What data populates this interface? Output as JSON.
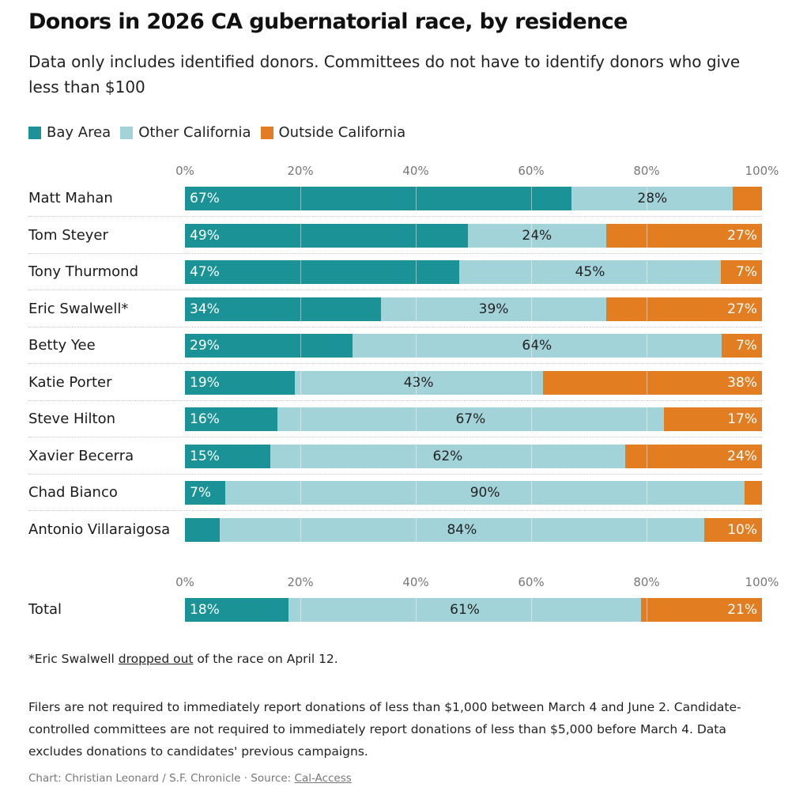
{
  "title": "Donors in 2026 CA gubernatorial race, by residence",
  "subtitle": "Data only includes identified donors. Committees do not have to identify donors who give less than $100",
  "footnote": {
    "prefix": "*Eric Swalwell ",
    "link": "dropped out",
    "suffix": " of the race on April 12."
  },
  "notes": "Filers are not required to immediately report donations of less than $1,000 between March 4 and June 2. Candidate-controlled committees are not required to immediately report donations of less than $5,000 before March 4. Data excludes donations to candidates' previous campaigns.",
  "credit": {
    "prefix": "Chart: Christian Leonard / S.F. Chronicle · Source: ",
    "link": "Cal-Access"
  },
  "colors": {
    "bay_area": "#1a9296",
    "other_california": "#a2d3d9",
    "outside_california": "#e27d22"
  },
  "chart_data": {
    "type": "bar",
    "orientation": "horizontal",
    "stacked": true,
    "xlim": [
      0,
      100
    ],
    "tick_labels": [
      "0%",
      "20%",
      "40%",
      "60%",
      "80%",
      "100%"
    ],
    "legend_position": "top-left",
    "series": [
      {
        "name": "Bay Area",
        "color": "#1a9296"
      },
      {
        "name": "Other California",
        "color": "#a2d3d9"
      },
      {
        "name": "Outside California",
        "color": "#e27d22"
      }
    ],
    "rows": [
      {
        "name": "Matt Mahan",
        "values": [
          67,
          28,
          5
        ],
        "labels": [
          "67%",
          "28%",
          ""
        ]
      },
      {
        "name": "Tom Steyer",
        "values": [
          49,
          24,
          27
        ],
        "labels": [
          "49%",
          "24%",
          "27%"
        ]
      },
      {
        "name": "Tony Thurmond",
        "values": [
          47,
          45,
          7
        ],
        "labels": [
          "47%",
          "45%",
          "7%"
        ]
      },
      {
        "name": "Eric Swalwell*",
        "values": [
          34,
          39,
          27
        ],
        "labels": [
          "34%",
          "39%",
          "27%"
        ]
      },
      {
        "name": "Betty Yee",
        "values": [
          29,
          64,
          7
        ],
        "labels": [
          "29%",
          "64%",
          "7%"
        ]
      },
      {
        "name": "Katie Porter",
        "values": [
          19,
          43,
          38
        ],
        "labels": [
          "19%",
          "43%",
          "38%"
        ]
      },
      {
        "name": "Steve Hilton",
        "values": [
          16,
          67,
          17
        ],
        "labels": [
          "16%",
          "67%",
          "17%"
        ]
      },
      {
        "name": "Xavier Becerra",
        "values": [
          15,
          62,
          24
        ],
        "labels": [
          "15%",
          "62%",
          "24%"
        ]
      },
      {
        "name": "Chad Bianco",
        "values": [
          7,
          90,
          3
        ],
        "labels": [
          "7%",
          "90%",
          ""
        ]
      },
      {
        "name": "Antonio Villaraigosa",
        "values": [
          6,
          84,
          10
        ],
        "labels": [
          "",
          "84%",
          "10%"
        ]
      }
    ],
    "total": {
      "name": "Total",
      "values": [
        18,
        61,
        21
      ],
      "labels": [
        "18%",
        "61%",
        "21%"
      ]
    }
  }
}
